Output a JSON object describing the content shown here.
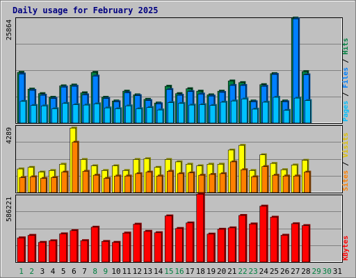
{
  "title": "Daily usage for February 2025",
  "colors": {
    "background": "#c0c0c0",
    "border": "#808080",
    "hits": "#008040",
    "files": "#0080ff",
    "pages": "#00c0ff",
    "visits": "#ffff00",
    "sites": "#ff8000",
    "kbytes": "#ff0000",
    "weekday": "#000000",
    "weekend": "#008040",
    "title": "#000080"
  },
  "right_labels": {
    "top": [
      {
        "text": "Pages",
        "color": "#00c0ff"
      },
      {
        "text": " / ",
        "color": "#000000"
      },
      {
        "text": "Files",
        "color": "#0080ff"
      },
      {
        "text": " / ",
        "color": "#000000"
      },
      {
        "text": "Hits",
        "color": "#008040"
      }
    ],
    "middle": [
      {
        "text": "Sites",
        "color": "#ff8000"
      },
      {
        "text": " / ",
        "color": "#000000"
      },
      {
        "text": "Visits",
        "color": "#e0c000"
      }
    ],
    "bottom": [
      {
        "text": "KBytes",
        "color": "#ff0000"
      }
    ]
  },
  "chart_data": {
    "type": "bar",
    "title": "Daily usage for February 2025",
    "categories": [
      "1",
      "2",
      "3",
      "4",
      "5",
      "6",
      "7",
      "8",
      "9",
      "10",
      "11",
      "12",
      "13",
      "14",
      "15",
      "16",
      "17",
      "18",
      "19",
      "20",
      "21",
      "22",
      "23",
      "24",
      "25",
      "26",
      "27",
      "28",
      "29",
      "30",
      "31"
    ],
    "weekend_days": [
      1,
      2,
      8,
      9,
      15,
      16,
      22,
      23,
      29,
      30
    ],
    "panels": [
      {
        "name": "top",
        "ymax_label": "25864",
        "ylim": [
          0,
          25864
        ],
        "series": [
          {
            "name": "Hits",
            "values": [
              12400,
              8300,
              7200,
              6300,
              9100,
              9300,
              7400,
              12400,
              6300,
              5400,
              7800,
              6900,
              5800,
              4900,
              9000,
              7200,
              8400,
              7800,
              6900,
              7800,
              10300,
              9900,
              5400,
              9400,
              12100,
              5400,
              25700,
              12600,
              0,
              0,
              0
            ]
          },
          {
            "name": "Files",
            "values": [
              12000,
              8000,
              6800,
              6000,
              8800,
              9000,
              6900,
              11500,
              6000,
              5200,
              7400,
              6700,
              5500,
              4700,
              8200,
              6800,
              7700,
              7100,
              6600,
              7500,
              9200,
              9200,
              5200,
              9000,
              11900,
              5200,
              25500,
              11800,
              0,
              0,
              0
            ]
          },
          {
            "name": "Pages",
            "values": [
              5300,
              4300,
              4200,
              3500,
              4800,
              4500,
              4400,
              4700,
              3700,
              3500,
              4200,
              3500,
              3800,
              3200,
              5000,
              4800,
              4400,
              4500,
              4300,
              5100,
              5400,
              5900,
              3400,
              5100,
              6300,
              3100,
              6100,
              5500,
              0,
              0,
              0
            ]
          }
        ]
      },
      {
        "name": "middle",
        "ymax_label": "4289",
        "ylim": [
          0,
          4289
        ],
        "series": [
          {
            "name": "Visits",
            "values": [
              1500,
              1600,
              1300,
              1400,
              1800,
              4100,
              2100,
              1700,
              1400,
              1700,
              1400,
              2100,
              2150,
              1600,
              2100,
              1950,
              1800,
              1700,
              1800,
              1800,
              2700,
              3000,
              1400,
              2400,
              1850,
              1450,
              1750,
              2050,
              0,
              0,
              0
            ]
          },
          {
            "name": "Sites",
            "values": [
              950,
              1000,
              900,
              950,
              1300,
              3200,
              1350,
              1100,
              900,
              1050,
              1050,
              1200,
              1300,
              1050,
              1350,
              1200,
              1250,
              1100,
              1150,
              1200,
              1950,
              1450,
              1000,
              1650,
              1100,
              1050,
              1050,
              1300,
              0,
              0,
              0
            ]
          }
        ]
      },
      {
        "name": "bottom",
        "ymax_label": "586221",
        "ylim": [
          0,
          586221
        ],
        "series": [
          {
            "name": "KBytes",
            "values": [
              210000,
              232000,
              171000,
              185000,
              245000,
              273000,
              186000,
              303000,
              179000,
              171000,
              252000,
              329000,
              267000,
              255000,
              401000,
              292000,
              340000,
              590000,
              243000,
              285000,
              297000,
              405000,
              331000,
              486000,
              390000,
              233000,
              333000,
              317000,
              0,
              0,
              0
            ]
          }
        ]
      }
    ]
  }
}
